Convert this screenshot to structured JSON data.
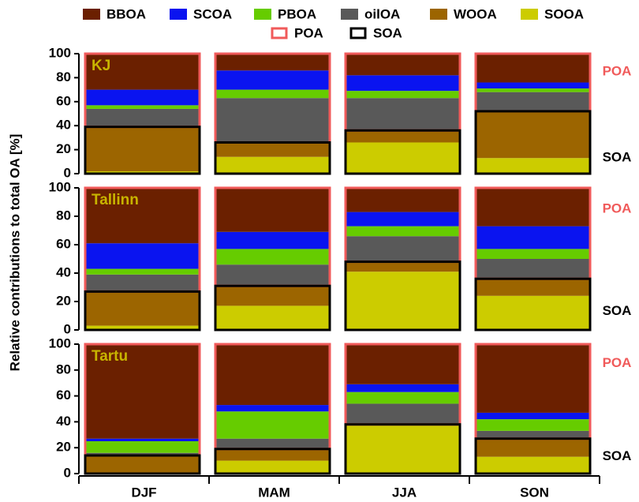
{
  "chart_data": [
    {
      "type": "bar",
      "stacked": true,
      "annotation": "KJ",
      "categories": [
        "DJF",
        "MAM",
        "JJA",
        "SON"
      ],
      "series": [
        {
          "name": "BBOA",
          "color": "#6b2000",
          "values": [
            30,
            14,
            18,
            24
          ]
        },
        {
          "name": "SCOA",
          "color": "#0a14f0",
          "values": [
            13,
            16,
            13,
            5
          ]
        },
        {
          "name": "PBOA",
          "color": "#66cc00",
          "values": [
            3,
            7,
            6,
            3
          ]
        },
        {
          "name": "oilOA",
          "color": "#595959",
          "values": [
            15,
            37,
            27,
            16
          ]
        },
        {
          "name": "WOOA",
          "color": "#9c6500",
          "values": [
            37,
            12,
            10,
            39
          ]
        },
        {
          "name": "SOOA",
          "color": "#cccc00",
          "values": [
            2,
            14,
            26,
            13
          ]
        }
      ],
      "groups": [
        {
          "name": "POA",
          "color": "#f05a5a",
          "members": [
            "BBOA",
            "SCOA",
            "PBOA",
            "oilOA"
          ]
        },
        {
          "name": "SOA",
          "color": "#000000",
          "members": [
            "WOOA",
            "SOOA"
          ]
        }
      ],
      "ylim": [
        0,
        100
      ],
      "yticks": [
        0,
        20,
        40,
        60,
        80,
        100
      ]
    },
    {
      "type": "bar",
      "stacked": true,
      "annotation": "Tallinn",
      "ylabel": "Relative contributions to total OA [%]",
      "categories": [
        "DJF",
        "MAM",
        "JJA",
        "SON"
      ],
      "series": [
        {
          "name": "BBOA",
          "color": "#6b2000",
          "values": [
            39,
            31,
            17,
            27
          ]
        },
        {
          "name": "SCOA",
          "color": "#0a14f0",
          "values": [
            18,
            12,
            10,
            16
          ]
        },
        {
          "name": "PBOA",
          "color": "#66cc00",
          "values": [
            4,
            11,
            7,
            7
          ]
        },
        {
          "name": "oilOA",
          "color": "#595959",
          "values": [
            12,
            15,
            18,
            14
          ]
        },
        {
          "name": "WOOA",
          "color": "#9c6500",
          "values": [
            24,
            14,
            7,
            12
          ]
        },
        {
          "name": "SOOA",
          "color": "#cccc00",
          "values": [
            3,
            17,
            41,
            24
          ]
        }
      ],
      "groups": [
        {
          "name": "POA",
          "color": "#f05a5a",
          "members": [
            "BBOA",
            "SCOA",
            "PBOA",
            "oilOA"
          ]
        },
        {
          "name": "SOA",
          "color": "#000000",
          "members": [
            "WOOA",
            "SOOA"
          ]
        }
      ],
      "ylim": [
        0,
        100
      ],
      "yticks": [
        0,
        20,
        40,
        60,
        80,
        100
      ]
    },
    {
      "type": "bar",
      "stacked": true,
      "annotation": "Tartu",
      "categories": [
        "DJF",
        "MAM",
        "JJA",
        "SON"
      ],
      "series": [
        {
          "name": "BBOA",
          "color": "#6b2000",
          "values": [
            73,
            47,
            31,
            53
          ]
        },
        {
          "name": "SCOA",
          "color": "#0a14f0",
          "values": [
            2,
            5,
            6,
            5
          ]
        },
        {
          "name": "PBOA",
          "color": "#66cc00",
          "values": [
            9,
            21,
            9,
            9
          ]
        },
        {
          "name": "oilOA",
          "color": "#595959",
          "values": [
            2,
            8,
            16,
            6
          ]
        },
        {
          "name": "WOOA",
          "color": "#9c6500",
          "values": [
            14,
            9,
            1,
            14
          ]
        },
        {
          "name": "SOOA",
          "color": "#cccc00",
          "values": [
            0,
            10,
            37,
            13
          ]
        }
      ],
      "groups": [
        {
          "name": "POA",
          "color": "#f05a5a",
          "members": [
            "BBOA",
            "SCOA",
            "PBOA",
            "oilOA"
          ]
        },
        {
          "name": "SOA",
          "color": "#000000",
          "members": [
            "WOOA",
            "SOOA"
          ]
        }
      ],
      "ylim": [
        0,
        100
      ],
      "yticks": [
        0,
        20,
        40,
        60,
        80,
        100
      ]
    }
  ]
}
